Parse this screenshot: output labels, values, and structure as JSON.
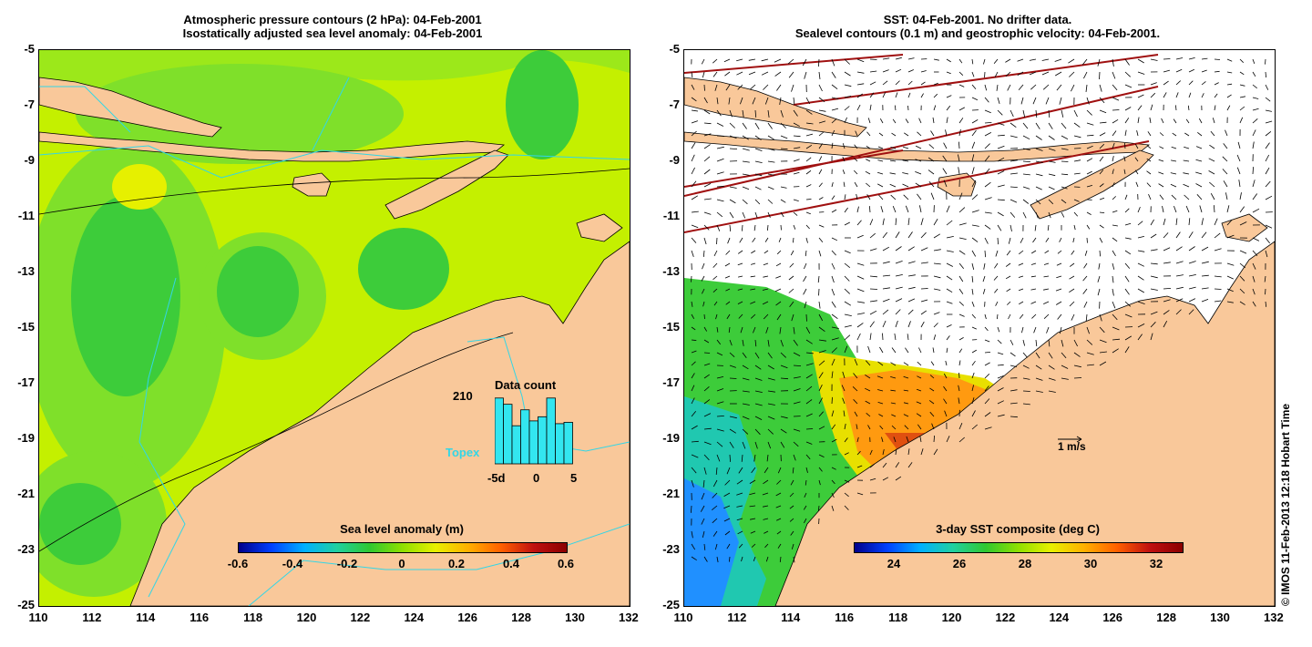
{
  "left_panel": {
    "title_line1": "Atmospheric pressure contours (2 hPa): 04-Feb-2001",
    "title_line2": "Isostatically adjusted sea level anomaly: 04-Feb-2001",
    "y_ticks": [
      "-5",
      "-7",
      "-9",
      "-11",
      "-13",
      "-15",
      "-17",
      "-19",
      "-21",
      "-23",
      "-25"
    ],
    "x_ticks": [
      "110",
      "112",
      "114",
      "116",
      "118",
      "120",
      "122",
      "124",
      "126",
      "128",
      "130",
      "132"
    ],
    "colorbar": {
      "label": "Sea level anomaly (m)",
      "ticks": [
        "-0.6",
        "-0.4",
        "-0.2",
        "0",
        "0.2",
        "0.4",
        "0.6"
      ]
    },
    "inset": {
      "title": "Data count",
      "ymax_label": "210",
      "series_label": "Topex",
      "x_ticks": [
        "-5d",
        "0",
        "5"
      ],
      "values": [
        0.95,
        0.86,
        0.55,
        0.78,
        0.62,
        0.68,
        0.95,
        0.58,
        0.6
      ],
      "bar_color": "#33e6f0"
    }
  },
  "right_panel": {
    "title_line1": "SST: 04-Feb-2001. No drifter data.",
    "title_line2": "Sealevel contours (0.1 m) and geostrophic velocity: 04-Feb-2001.",
    "y_ticks": [
      "-5",
      "-7",
      "-9",
      "-11",
      "-13",
      "-15",
      "-17",
      "-19",
      "-21",
      "-23",
      "-25"
    ],
    "x_ticks": [
      "110",
      "112",
      "114",
      "116",
      "118",
      "120",
      "122",
      "124",
      "126",
      "128",
      "130",
      "132"
    ],
    "colorbar": {
      "label": "3-day SST composite (deg C)",
      "ticks": [
        "24",
        "26",
        "28",
        "30",
        "32"
      ]
    },
    "scale_label": "1 m/s"
  },
  "credit": "© IMOS 11-Feb-2013 12:18 Hobart Time",
  "colors": {
    "land": "#f9c89a",
    "ocean_green": "#7fe02a",
    "ocean_lime": "#c4f000",
    "track": "#33d6e6"
  }
}
